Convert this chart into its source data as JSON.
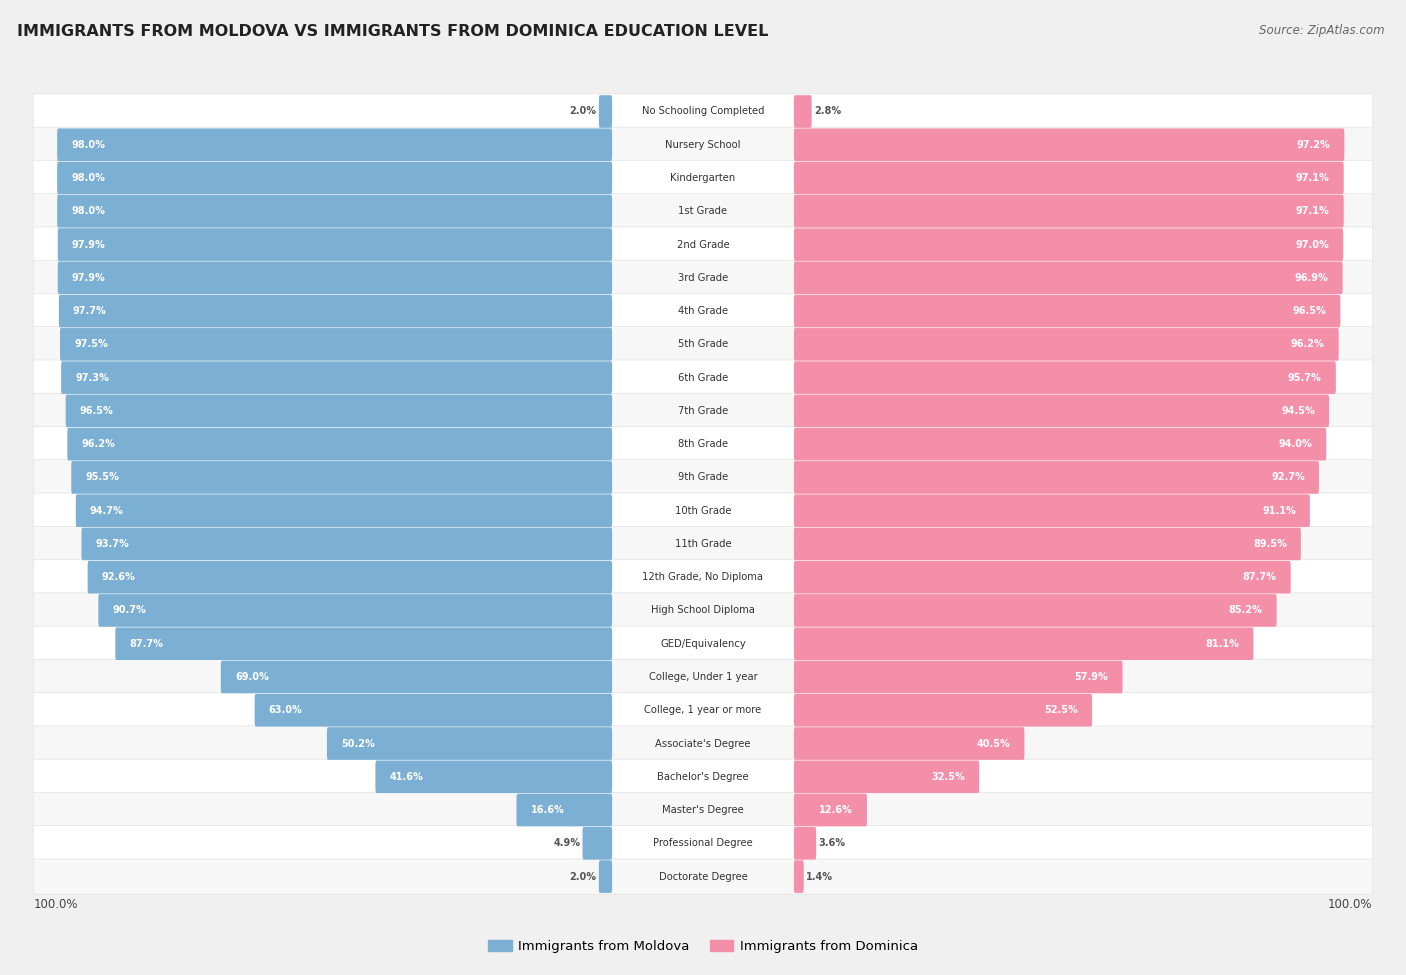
{
  "title": "IMMIGRANTS FROM MOLDOVA VS IMMIGRANTS FROM DOMINICA EDUCATION LEVEL",
  "source": "Source: ZipAtlas.com",
  "categories": [
    "No Schooling Completed",
    "Nursery School",
    "Kindergarten",
    "1st Grade",
    "2nd Grade",
    "3rd Grade",
    "4th Grade",
    "5th Grade",
    "6th Grade",
    "7th Grade",
    "8th Grade",
    "9th Grade",
    "10th Grade",
    "11th Grade",
    "12th Grade, No Diploma",
    "High School Diploma",
    "GED/Equivalency",
    "College, Under 1 year",
    "College, 1 year or more",
    "Associate's Degree",
    "Bachelor's Degree",
    "Master's Degree",
    "Professional Degree",
    "Doctorate Degree"
  ],
  "moldova_values": [
    2.0,
    98.0,
    98.0,
    98.0,
    97.9,
    97.9,
    97.7,
    97.5,
    97.3,
    96.5,
    96.2,
    95.5,
    94.7,
    93.7,
    92.6,
    90.7,
    87.7,
    69.0,
    63.0,
    50.2,
    41.6,
    16.6,
    4.9,
    2.0
  ],
  "dominica_values": [
    2.8,
    97.2,
    97.1,
    97.1,
    97.0,
    96.9,
    96.5,
    96.2,
    95.7,
    94.5,
    94.0,
    92.7,
    91.1,
    89.5,
    87.7,
    85.2,
    81.1,
    57.9,
    52.5,
    40.5,
    32.5,
    12.6,
    3.6,
    1.4
  ],
  "moldova_color": "#7bafd4",
  "dominica_color": "#f48faa",
  "background_color": "#f0f0f0",
  "row_bg_light": "#f7f7f7",
  "row_bg_white": "#ffffff",
  "legend_moldova": "Immigrants from Moldova",
  "legend_dominica": "Immigrants from Dominica",
  "axis_label": "100.0%"
}
